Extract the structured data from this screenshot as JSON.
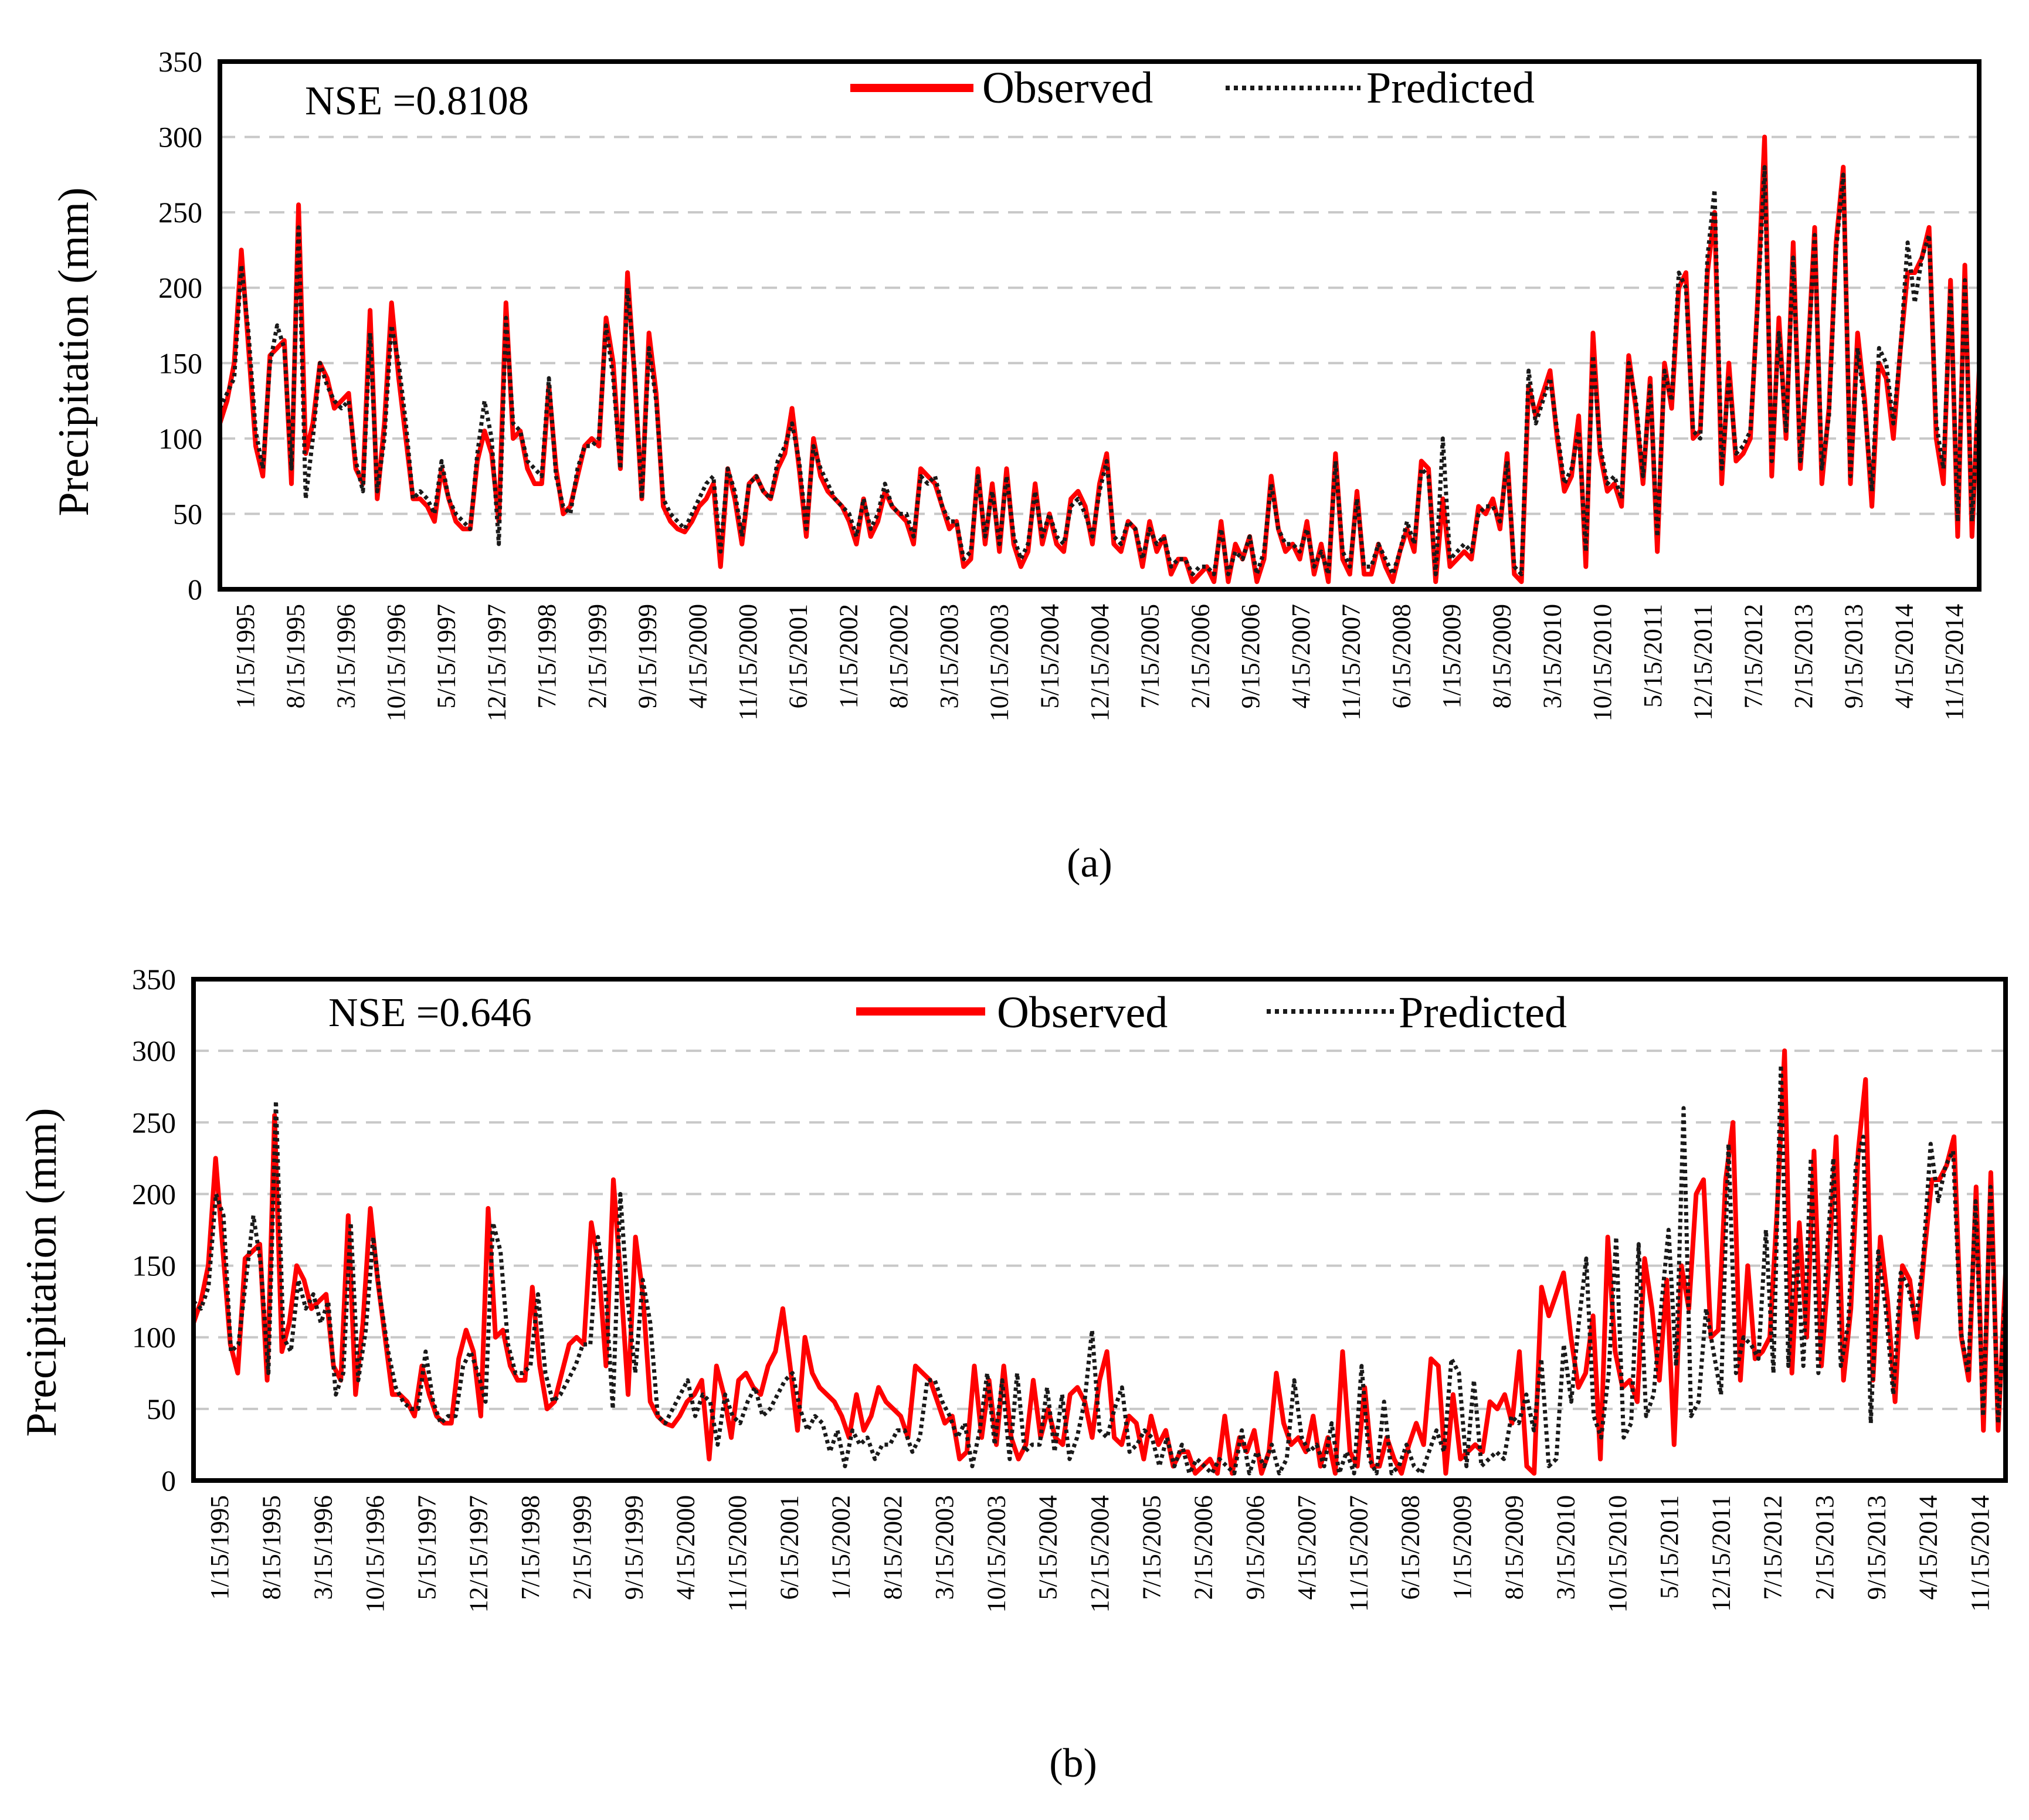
{
  "figure": {
    "captions": [
      "(a)",
      "(b)"
    ]
  },
  "chart_data": [
    {
      "type": "line",
      "panel": "(a)",
      "annotation": "NSE =0.8108",
      "ylabel": "Precipitation (mm)",
      "xlabel": "",
      "ylim": [
        0,
        350
      ],
      "yticks": [
        0,
        50,
        100,
        150,
        200,
        250,
        300,
        350
      ],
      "grid": "horizontal dashed",
      "legend_position": "top-center",
      "xtick_labels": [
        "1/15/1995",
        "8/15/1995",
        "3/15/1996",
        "10/15/1996",
        "5/15/1997",
        "12/15/1997",
        "7/15/1998",
        "2/15/1999",
        "9/15/1999",
        "4/15/2000",
        "11/15/2000",
        "6/15/2001",
        "1/15/2002",
        "8/15/2002",
        "3/15/2003",
        "10/15/2003",
        "5/15/2004",
        "12/15/2004",
        "7/15/2005",
        "2/15/2006",
        "9/15/2006",
        "4/15/2007",
        "11/15/2007",
        "6/15/2008",
        "1/15/2009",
        "8/15/2009",
        "3/15/2010",
        "10/15/2010",
        "5/15/2011",
        "12/15/2011",
        "7/15/2012",
        "2/15/2013",
        "9/15/2013",
        "4/15/2014",
        "11/15/2014"
      ],
      "series": [
        {
          "name": "Observed",
          "style": "solid",
          "color": "#ff0000",
          "values": [
            110,
            125,
            150,
            225,
            160,
            95,
            75,
            155,
            160,
            165,
            70,
            255,
            90,
            110,
            150,
            140,
            120,
            125,
            130,
            80,
            70,
            185,
            60,
            110,
            190,
            140,
            100,
            60,
            60,
            55,
            45,
            80,
            60,
            45,
            40,
            40,
            85,
            105,
            90,
            45,
            190,
            100,
            105,
            80,
            70,
            70,
            135,
            80,
            50,
            55,
            75,
            95,
            100,
            95,
            180,
            150,
            80,
            210,
            140,
            60,
            170,
            130,
            55,
            45,
            40,
            38,
            45,
            55,
            60,
            70,
            15,
            80,
            60,
            30,
            70,
            75,
            65,
            60,
            80,
            90,
            120,
            80,
            35,
            100,
            75,
            65,
            60,
            55,
            45,
            30,
            60,
            35,
            45,
            65,
            55,
            50,
            45,
            30,
            80,
            75,
            70,
            55,
            40,
            45,
            15,
            20,
            80,
            30,
            70,
            25,
            80,
            30,
            15,
            25,
            70,
            30,
            50,
            30,
            25,
            60,
            65,
            55,
            30,
            70,
            90,
            30,
            25,
            45,
            40,
            15,
            45,
            25,
            35,
            10,
            20,
            20,
            5,
            10,
            15,
            5,
            45,
            5,
            30,
            20,
            35,
            5,
            20,
            75,
            40,
            25,
            30,
            20,
            45,
            10,
            30,
            5,
            90,
            20,
            10,
            65,
            10,
            10,
            30,
            15,
            5,
            25,
            40,
            25,
            85,
            80,
            5,
            60,
            15,
            20,
            25,
            20,
            55,
            50,
            60,
            40,
            90,
            10,
            5,
            135,
            115,
            130,
            145,
            100,
            65,
            75,
            115,
            15,
            170,
            90,
            65,
            70,
            55,
            155,
            120,
            70,
            140,
            25,
            150,
            120,
            200,
            210,
            100,
            105,
            210,
            250,
            70,
            150,
            85,
            90,
            100,
            190,
            300,
            75,
            180,
            100,
            230,
            80,
            150,
            240,
            70,
            120,
            230,
            280,
            70,
            170,
            125,
            55,
            150,
            140,
            100,
            160,
            210,
            210,
            220,
            240,
            100,
            70,
            205,
            35,
            215,
            35,
            145
          ]
        },
        {
          "name": "Predicted",
          "style": "dotted",
          "color": "#1a1a1a",
          "values": [
            120,
            130,
            140,
            215,
            170,
            105,
            80,
            150,
            175,
            160,
            80,
            240,
            60,
            100,
            150,
            135,
            125,
            120,
            125,
            85,
            65,
            170,
            65,
            100,
            175,
            150,
            110,
            60,
            65,
            60,
            50,
            85,
            60,
            50,
            45,
            40,
            90,
            125,
            100,
            30,
            180,
            110,
            105,
            85,
            80,
            75,
            140,
            75,
            55,
            50,
            80,
            95,
            95,
            100,
            175,
            140,
            80,
            200,
            145,
            60,
            160,
            125,
            60,
            50,
            45,
            40,
            50,
            60,
            70,
            75,
            25,
            80,
            65,
            35,
            70,
            75,
            65,
            60,
            85,
            95,
            110,
            85,
            40,
            95,
            80,
            70,
            60,
            55,
            50,
            35,
            60,
            40,
            50,
            70,
            55,
            50,
            50,
            35,
            75,
            70,
            75,
            55,
            45,
            45,
            20,
            25,
            75,
            35,
            65,
            30,
            75,
            35,
            20,
            30,
            65,
            35,
            50,
            35,
            30,
            55,
            60,
            50,
            35,
            65,
            85,
            35,
            30,
            45,
            40,
            20,
            40,
            30,
            35,
            15,
            20,
            20,
            10,
            15,
            15,
            10,
            40,
            10,
            25,
            20,
            35,
            10,
            25,
            70,
            40,
            30,
            30,
            25,
            40,
            15,
            25,
            10,
            85,
            25,
            15,
            60,
            15,
            15,
            30,
            20,
            10,
            25,
            45,
            30,
            80,
            75,
            10,
            100,
            20,
            25,
            30,
            25,
            50,
            55,
            55,
            45,
            85,
            15,
            10,
            145,
            110,
            125,
            140,
            105,
            70,
            80,
            105,
            25,
            155,
            95,
            70,
            75,
            60,
            150,
            125,
            75,
            135,
            35,
            145,
            125,
            210,
            200,
            105,
            100,
            220,
            265,
            80,
            140,
            90,
            95,
            105,
            185,
            280,
            85,
            170,
            105,
            220,
            85,
            145,
            235,
            80,
            115,
            225,
            275,
            75,
            160,
            120,
            65,
            160,
            150,
            110,
            160,
            230,
            190,
            220,
            235,
            110,
            80,
            200,
            45,
            205,
            45,
            135
          ]
        }
      ]
    },
    {
      "type": "line",
      "panel": "(b)",
      "annotation": "NSE =0.646",
      "ylabel": "Precipitation (mm)",
      "xlabel": "",
      "ylim": [
        0,
        350
      ],
      "yticks": [
        0,
        50,
        100,
        150,
        200,
        250,
        300,
        350
      ],
      "grid": "horizontal dashed",
      "legend_position": "top-center",
      "xtick_labels": [
        "1/15/1995",
        "8/15/1995",
        "3/15/1996",
        "10/15/1996",
        "5/15/1997",
        "12/15/1997",
        "7/15/1998",
        "2/15/1999",
        "9/15/1999",
        "4/15/2000",
        "11/15/2000",
        "6/15/2001",
        "1/15/2002",
        "8/15/2002",
        "3/15/2003",
        "10/15/2003",
        "5/15/2004",
        "12/15/2004",
        "7/15/2005",
        "2/15/2006",
        "9/15/2006",
        "4/15/2007",
        "11/15/2007",
        "6/15/2008",
        "1/15/2009",
        "8/15/2009",
        "3/15/2010",
        "10/15/2010",
        "5/15/2011",
        "12/15/2011",
        "7/15/2012",
        "2/15/2013",
        "9/15/2013",
        "4/15/2014",
        "11/15/2014"
      ],
      "series": [
        {
          "name": "Observed",
          "style": "solid",
          "color": "#ff0000",
          "values": [
            110,
            125,
            150,
            225,
            160,
            95,
            75,
            155,
            160,
            165,
            70,
            255,
            90,
            110,
            150,
            140,
            120,
            125,
            130,
            80,
            70,
            185,
            60,
            110,
            190,
            140,
            100,
            60,
            60,
            55,
            45,
            80,
            60,
            45,
            40,
            40,
            85,
            105,
            90,
            45,
            190,
            100,
            105,
            80,
            70,
            70,
            135,
            80,
            50,
            55,
            75,
            95,
            100,
            95,
            180,
            150,
            80,
            210,
            140,
            60,
            170,
            130,
            55,
            45,
            40,
            38,
            45,
            55,
            60,
            70,
            15,
            80,
            60,
            30,
            70,
            75,
            65,
            60,
            80,
            90,
            120,
            80,
            35,
            100,
            75,
            65,
            60,
            55,
            45,
            30,
            60,
            35,
            45,
            65,
            55,
            50,
            45,
            30,
            80,
            75,
            70,
            55,
            40,
            45,
            15,
            20,
            80,
            30,
            70,
            25,
            80,
            30,
            15,
            25,
            70,
            30,
            50,
            30,
            25,
            60,
            65,
            55,
            30,
            70,
            90,
            30,
            25,
            45,
            40,
            15,
            45,
            25,
            35,
            10,
            20,
            20,
            5,
            10,
            15,
            5,
            45,
            5,
            30,
            20,
            35,
            5,
            20,
            75,
            40,
            25,
            30,
            20,
            45,
            10,
            30,
            5,
            90,
            20,
            10,
            65,
            10,
            10,
            30,
            15,
            5,
            25,
            40,
            25,
            85,
            80,
            5,
            60,
            15,
            20,
            25,
            20,
            55,
            50,
            60,
            40,
            90,
            10,
            5,
            135,
            115,
            130,
            145,
            100,
            65,
            75,
            115,
            15,
            170,
            90,
            65,
            70,
            55,
            155,
            120,
            70,
            140,
            25,
            150,
            120,
            200,
            210,
            100,
            105,
            210,
            250,
            70,
            150,
            85,
            90,
            100,
            190,
            300,
            75,
            180,
            100,
            230,
            80,
            150,
            240,
            70,
            120,
            230,
            280,
            70,
            170,
            125,
            55,
            150,
            140,
            100,
            160,
            210,
            210,
            220,
            240,
            100,
            70,
            205,
            35,
            215,
            35,
            145
          ]
        },
        {
          "name": "Predicted",
          "style": "dotted",
          "color": "#1a1a1a",
          "values": [
            125,
            120,
            135,
            200,
            185,
            90,
            95,
            140,
            185,
            150,
            75,
            265,
            100,
            90,
            140,
            120,
            130,
            110,
            125,
            60,
            75,
            180,
            70,
            105,
            170,
            125,
            90,
            65,
            55,
            50,
            50,
            90,
            55,
            40,
            45,
            45,
            80,
            90,
            75,
            55,
            180,
            160,
            95,
            75,
            75,
            80,
            130,
            75,
            55,
            60,
            70,
            80,
            95,
            95,
            170,
            135,
            50,
            200,
            125,
            75,
            140,
            110,
            45,
            40,
            50,
            60,
            70,
            45,
            60,
            55,
            25,
            60,
            45,
            40,
            55,
            65,
            45,
            50,
            60,
            70,
            75,
            50,
            35,
            45,
            40,
            20,
            35,
            10,
            35,
            25,
            30,
            15,
            25,
            25,
            35,
            35,
            20,
            30,
            70,
            70,
            55,
            45,
            30,
            40,
            10,
            35,
            75,
            25,
            70,
            15,
            75,
            20,
            25,
            25,
            65,
            20,
            60,
            15,
            30,
            55,
            105,
            35,
            30,
            50,
            65,
            20,
            25,
            35,
            30,
            10,
            30,
            10,
            25,
            5,
            15,
            10,
            5,
            15,
            10,
            5,
            35,
            5,
            20,
            10,
            25,
            5,
            15,
            70,
            30,
            20,
            25,
            10,
            40,
            5,
            20,
            5,
            80,
            15,
            5,
            55,
            5,
            10,
            25,
            10,
            5,
            20,
            35,
            20,
            85,
            75,
            10,
            70,
            10,
            15,
            20,
            15,
            45,
            40,
            60,
            35,
            85,
            10,
            15,
            95,
            55,
            110,
            155,
            45,
            30,
            75,
            170,
            30,
            40,
            165,
            45,
            60,
            120,
            175,
            80,
            260,
            45,
            55,
            120,
            90,
            60,
            235,
            75,
            100,
            95,
            85,
            175,
            75,
            290,
            80,
            170,
            80,
            225,
            75,
            145,
            225,
            80,
            110,
            220,
            240,
            40,
            160,
            120,
            60,
            145,
            135,
            110,
            155,
            235,
            195,
            220,
            230,
            105,
            75,
            195,
            45,
            205,
            40,
            130
          ]
        }
      ]
    }
  ]
}
